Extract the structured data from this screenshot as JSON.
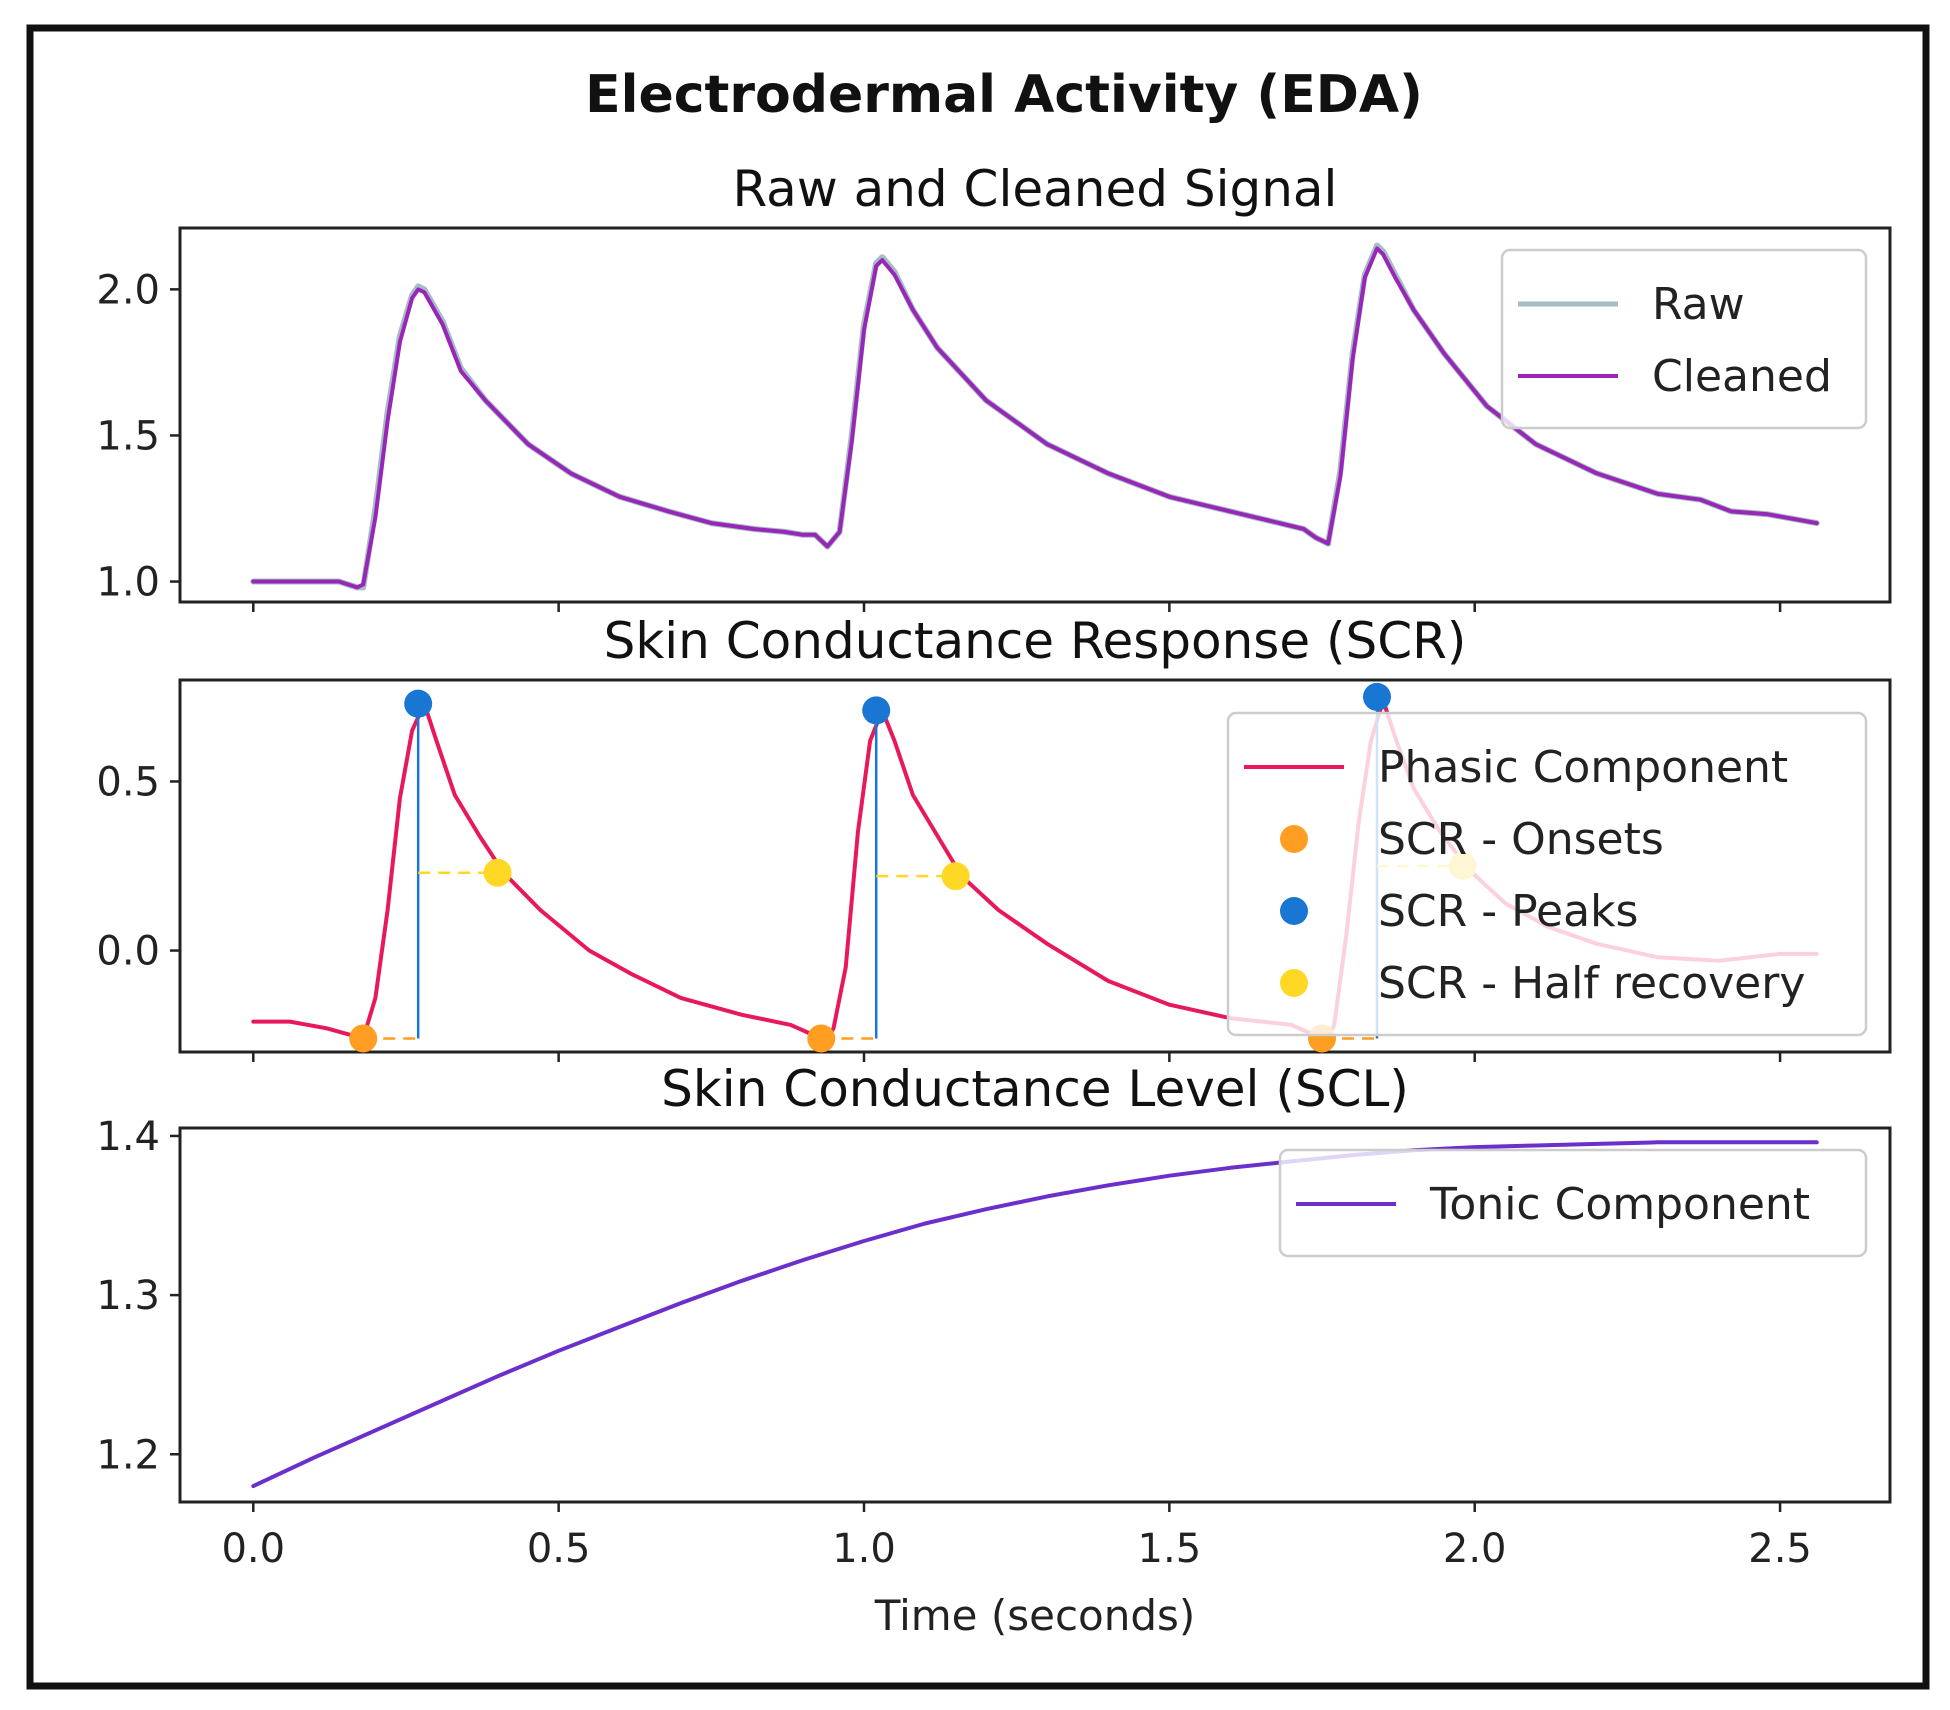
{
  "chart_data": {
    "type": "line",
    "suptitle": "Electrodermal Activity (EDA)",
    "xlabel": "Time (seconds)",
    "xlim": [
      -0.12,
      2.68
    ],
    "xticks": [
      0.0,
      0.5,
      1.0,
      1.5,
      2.0,
      2.5
    ],
    "xtick_labels": [
      "0.0",
      "0.5",
      "1.0",
      "1.5",
      "2.0",
      "2.5"
    ],
    "grid": false,
    "colors": {
      "raw": "#a7bcc6",
      "cleaned": "#9826b6",
      "phasic": "#e8195b",
      "onsets": "#ff9e22",
      "peaks": "#1976d2",
      "half_recovery": "#ffd826",
      "tonic": "#6b2fcc"
    },
    "panels": [
      {
        "id": "raw-cleaned",
        "title": "Raw and Cleaned Signal",
        "ylim": [
          0.93,
          2.21
        ],
        "yticks": [
          1.0,
          1.5,
          2.0
        ],
        "ytick_labels": [
          "1.0",
          "1.5",
          "2.0"
        ],
        "legend_position": "upper right",
        "legend": [
          {
            "label": "Raw",
            "kind": "line",
            "color_key": "raw"
          },
          {
            "label": "Cleaned",
            "kind": "line",
            "color_key": "cleaned"
          }
        ],
        "series": [
          {
            "name": "Raw",
            "color_key": "raw",
            "x": [
              0.0,
              0.1,
              0.14,
              0.17,
              0.18,
              0.2,
              0.22,
              0.24,
              0.26,
              0.27,
              0.28,
              0.31,
              0.34,
              0.38,
              0.45,
              0.52,
              0.6,
              0.68,
              0.75,
              0.82,
              0.87,
              0.9,
              0.92,
              0.94,
              0.96,
              0.98,
              1.0,
              1.02,
              1.03,
              1.05,
              1.08,
              1.12,
              1.2,
              1.3,
              1.4,
              1.5,
              1.6,
              1.68,
              1.72,
              1.74,
              1.76,
              1.78,
              1.8,
              1.82,
              1.84,
              1.85,
              1.87,
              1.9,
              1.95,
              2.02,
              2.1,
              2.2,
              2.3,
              2.37,
              2.42,
              2.48,
              2.56
            ],
            "y": [
              1.0,
              1.0,
              1.0,
              0.98,
              0.98,
              1.25,
              1.58,
              1.84,
              1.98,
              2.01,
              2.0,
              1.89,
              1.73,
              1.62,
              1.47,
              1.37,
              1.29,
              1.24,
              1.2,
              1.18,
              1.17,
              1.16,
              1.16,
              1.12,
              1.17,
              1.5,
              1.88,
              2.09,
              2.11,
              2.06,
              1.93,
              1.8,
              1.62,
              1.47,
              1.37,
              1.29,
              1.24,
              1.2,
              1.18,
              1.15,
              1.13,
              1.38,
              1.78,
              2.05,
              2.15,
              2.13,
              2.05,
              1.93,
              1.78,
              1.6,
              1.47,
              1.37,
              1.3,
              1.28,
              1.24,
              1.23,
              1.2
            ]
          },
          {
            "name": "Cleaned",
            "color_key": "cleaned",
            "x": [
              0.0,
              0.1,
              0.14,
              0.17,
              0.18,
              0.2,
              0.22,
              0.24,
              0.26,
              0.27,
              0.28,
              0.31,
              0.34,
              0.38,
              0.45,
              0.52,
              0.6,
              0.68,
              0.75,
              0.82,
              0.87,
              0.9,
              0.92,
              0.94,
              0.96,
              0.98,
              1.0,
              1.02,
              1.03,
              1.05,
              1.08,
              1.12,
              1.2,
              1.3,
              1.4,
              1.5,
              1.6,
              1.68,
              1.72,
              1.74,
              1.76,
              1.78,
              1.8,
              1.82,
              1.84,
              1.85,
              1.87,
              1.9,
              1.95,
              2.02,
              2.1,
              2.2,
              2.3,
              2.37,
              2.42,
              2.48,
              2.56
            ],
            "y": [
              1.0,
              1.0,
              1.0,
              0.98,
              0.99,
              1.22,
              1.55,
              1.82,
              1.97,
              2.0,
              1.99,
              1.88,
              1.72,
              1.62,
              1.47,
              1.37,
              1.29,
              1.24,
              1.2,
              1.18,
              1.17,
              1.16,
              1.16,
              1.12,
              1.17,
              1.48,
              1.86,
              2.08,
              2.1,
              2.05,
              1.93,
              1.8,
              1.62,
              1.47,
              1.37,
              1.29,
              1.24,
              1.2,
              1.18,
              1.15,
              1.13,
              1.36,
              1.76,
              2.04,
              2.14,
              2.12,
              2.04,
              1.93,
              1.78,
              1.6,
              1.47,
              1.37,
              1.3,
              1.28,
              1.24,
              1.23,
              1.2
            ]
          }
        ]
      },
      {
        "id": "scr",
        "title": "Skin Conductance Response (SCR)",
        "ylim": [
          -0.3,
          0.8
        ],
        "yticks": [
          0.0,
          0.5
        ],
        "ytick_labels": [
          "0.0",
          "0.5"
        ],
        "legend_position": "center right",
        "legend": [
          {
            "label": "Phasic Component",
            "kind": "line",
            "color_key": "phasic"
          },
          {
            "label": "SCR - Onsets",
            "kind": "dot",
            "color_key": "onsets"
          },
          {
            "label": "SCR - Peaks",
            "kind": "dot",
            "color_key": "peaks"
          },
          {
            "label": "SCR - Half recovery",
            "kind": "dot",
            "color_key": "half_recovery"
          }
        ],
        "series": [
          {
            "name": "Phasic Component",
            "color_key": "phasic",
            "x": [
              0.0,
              0.06,
              0.12,
              0.16,
              0.18,
              0.2,
              0.22,
              0.24,
              0.26,
              0.28,
              0.3,
              0.33,
              0.37,
              0.41,
              0.47,
              0.55,
              0.62,
              0.7,
              0.8,
              0.88,
              0.93,
              0.94,
              0.95,
              0.97,
              0.99,
              1.01,
              1.03,
              1.05,
              1.08,
              1.12,
              1.16,
              1.22,
              1.3,
              1.4,
              1.5,
              1.6,
              1.7,
              1.75,
              1.76,
              1.77,
              1.79,
              1.81,
              1.83,
              1.85,
              1.87,
              1.9,
              1.94,
              1.99,
              2.05,
              2.12,
              2.2,
              2.3,
              2.4,
              2.5,
              2.56
            ],
            "y": [
              -0.21,
              -0.21,
              -0.23,
              -0.25,
              -0.26,
              -0.14,
              0.12,
              0.45,
              0.65,
              0.73,
              0.62,
              0.46,
              0.34,
              0.23,
              0.12,
              0.0,
              -0.07,
              -0.14,
              -0.19,
              -0.22,
              -0.26,
              -0.26,
              -0.23,
              -0.05,
              0.35,
              0.62,
              0.71,
              0.62,
              0.46,
              0.34,
              0.22,
              0.12,
              0.02,
              -0.09,
              -0.16,
              -0.2,
              -0.22,
              -0.26,
              -0.26,
              -0.22,
              0.05,
              0.38,
              0.62,
              0.74,
              0.63,
              0.48,
              0.36,
              0.24,
              0.14,
              0.07,
              0.02,
              -0.02,
              -0.03,
              -0.01,
              -0.01
            ]
          }
        ],
        "onsets": [
          {
            "x": 0.18,
            "y": -0.26
          },
          {
            "x": 0.93,
            "y": -0.26
          },
          {
            "x": 1.75,
            "y": -0.26
          }
        ],
        "peaks": [
          {
            "x": 0.27,
            "y": 0.73
          },
          {
            "x": 1.02,
            "y": 0.71
          },
          {
            "x": 1.84,
            "y": 0.75
          }
        ],
        "half_recovery": [
          {
            "x": 0.4,
            "y": 0.23
          },
          {
            "x": 1.15,
            "y": 0.22
          },
          {
            "x": 1.98,
            "y": 0.25
          }
        ]
      },
      {
        "id": "scl",
        "title": "Skin Conductance Level (SCL)",
        "ylim": [
          1.17,
          1.405
        ],
        "yticks": [
          1.2,
          1.3,
          1.4
        ],
        "ytick_labels": [
          "1.2",
          "1.3",
          "1.4"
        ],
        "legend_position": "upper right",
        "legend": [
          {
            "label": "Tonic Component",
            "kind": "line",
            "color_key": "tonic"
          }
        ],
        "series": [
          {
            "name": "Tonic Component",
            "color_key": "tonic",
            "x": [
              0.0,
              0.1,
              0.2,
              0.3,
              0.4,
              0.5,
              0.6,
              0.7,
              0.8,
              0.9,
              1.0,
              1.1,
              1.2,
              1.3,
              1.4,
              1.5,
              1.6,
              1.7,
              1.8,
              1.9,
              2.0,
              2.1,
              2.2,
              2.3,
              2.4,
              2.5,
              2.56
            ],
            "y": [
              1.18,
              1.198,
              1.215,
              1.232,
              1.249,
              1.265,
              1.28,
              1.295,
              1.309,
              1.322,
              1.334,
              1.345,
              1.354,
              1.362,
              1.369,
              1.375,
              1.38,
              1.384,
              1.388,
              1.391,
              1.393,
              1.394,
              1.395,
              1.396,
              1.396,
              1.396,
              1.396
            ]
          }
        ]
      }
    ]
  }
}
